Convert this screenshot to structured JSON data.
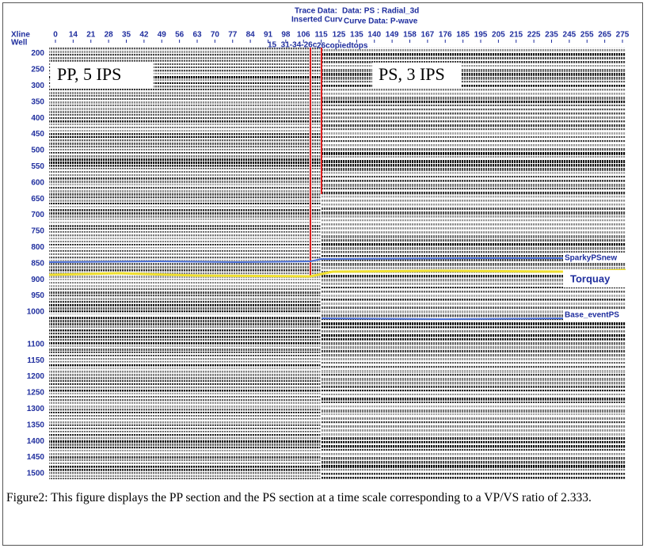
{
  "header": {
    "trace_data": "Trace Data:",
    "data": "Data: PS : Radial_3d",
    "inserted_curve": "Inserted Curv",
    "curve_data": "Curve Data: P-wave"
  },
  "axis": {
    "xline_label": "Xline",
    "well_label": "Well",
    "xlines": [
      0,
      14,
      21,
      28,
      35,
      42,
      49,
      56,
      63,
      70,
      77,
      84,
      91,
      98,
      106,
      115,
      125,
      135,
      140,
      149,
      158,
      167,
      176,
      185,
      195,
      205,
      215,
      225,
      235,
      245,
      255,
      265,
      275
    ],
    "times": [
      200,
      250,
      300,
      350,
      400,
      450,
      500,
      550,
      600,
      650,
      700,
      750,
      800,
      850,
      900,
      950,
      1000,
      1100,
      1150,
      1200,
      1250,
      1300,
      1350,
      1400,
      1450,
      1500
    ]
  },
  "wells": [
    "15_31-34-26c",
    "26copiedtops"
  ],
  "panels": [
    "PP, 5 IPS",
    "PS, 3 IPS"
  ],
  "horizons": [
    "SparkyPSnew",
    "Torquay",
    "Base_eventPS"
  ],
  "caption": "Figure2:  This figure displays the PP section and the PS section at a time scale corresponding to a VP/VS ratio of 2.333."
}
